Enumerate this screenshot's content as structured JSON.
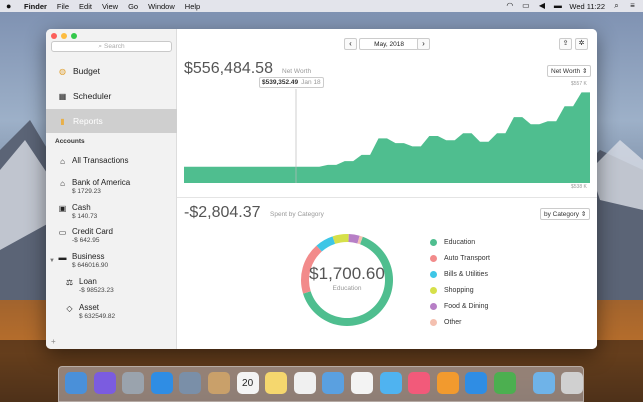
{
  "menubar": {
    "apple": "",
    "items": [
      "Finder",
      "File",
      "Edit",
      "View",
      "Go",
      "Window",
      "Help"
    ],
    "clock": "Wed 11:22"
  },
  "sidebar": {
    "search_placeholder": "Search",
    "nav": [
      {
        "label": "Budget",
        "icon": "budget-icon"
      },
      {
        "label": "Scheduler",
        "icon": "calendar-icon"
      },
      {
        "label": "Reports",
        "icon": "bar-chart-icon"
      }
    ],
    "accounts_header": "Accounts",
    "accounts": [
      {
        "label": "All Transactions",
        "amount": ""
      },
      {
        "label": "Bank of America",
        "amount": "$ 1729.23"
      },
      {
        "label": "Cash",
        "amount": "$ 140.73"
      },
      {
        "label": "Credit Card",
        "amount": "-$ 642.95"
      },
      {
        "label": "Business",
        "amount": "$ 646016.90"
      },
      {
        "label": "Loan",
        "amount": "-$ 98523.23"
      },
      {
        "label": "Asset",
        "amount": "$ 632549.82"
      }
    ],
    "add": "+"
  },
  "toolbar": {
    "prev": "‹",
    "date": "May, 2018",
    "next": "›"
  },
  "networth": {
    "value": "$556,484.58",
    "label": "Net Worth",
    "selector": "Net Worth",
    "top_label": "$557 K",
    "bottom_label": "$538 K",
    "tooltip_value": "$539,352.49",
    "tooltip_date": "Jan 18"
  },
  "spending": {
    "value": "-$2,804.37",
    "label": "Spent by Category",
    "selector": "by Category",
    "center_value": "$1,700.60",
    "center_label": "Education"
  },
  "chart_data": [
    {
      "type": "area",
      "title": "",
      "ylim": [
        538,
        557
      ],
      "ytick_labels": [
        "$557 K",
        "$538 K"
      ],
      "values": [
        541,
        541,
        541,
        541,
        541,
        541,
        541,
        541,
        541,
        541,
        541,
        541,
        541,
        541,
        541,
        541,
        541,
        541.4,
        541.4,
        542.2,
        542.2,
        543.5,
        543.5,
        547,
        547,
        546,
        546,
        545.3,
        545.3,
        547.5,
        547.5,
        546.6,
        546.6,
        548.1,
        548.1,
        546.3,
        546.3,
        548.1,
        548.1,
        551.5,
        551.5,
        550,
        550,
        550.6,
        550.6,
        553.8,
        553.8,
        556.7,
        556.7
      ],
      "color": "#4fbe8f"
    },
    {
      "type": "pie",
      "title": "",
      "categories": [
        "Education",
        "Auto Transport",
        "Bills & Utilities",
        "Shopping",
        "Food & Dining",
        "Other"
      ],
      "values": [
        1700.6,
        480,
        170,
        150,
        100,
        30
      ],
      "colors": [
        "#4fbe8f",
        "#f28b8b",
        "#3ec6e6",
        "#d6e04a",
        "#b77fc6",
        "#f4c0b0"
      ]
    }
  ],
  "dock": {
    "icons": [
      "finder-icon",
      "siri-icon",
      "launchpad-icon",
      "safari-icon",
      "photo-icon",
      "notes-book-icon",
      "calendar-icon",
      "notes-icon",
      "reminders-icon",
      "files-icon",
      "photos-icon",
      "messages-icon",
      "music-icon",
      "books-icon",
      "appstore-icon",
      "finance-icon",
      "downloads-icon",
      "trash-icon"
    ],
    "calendar_day": "20"
  }
}
